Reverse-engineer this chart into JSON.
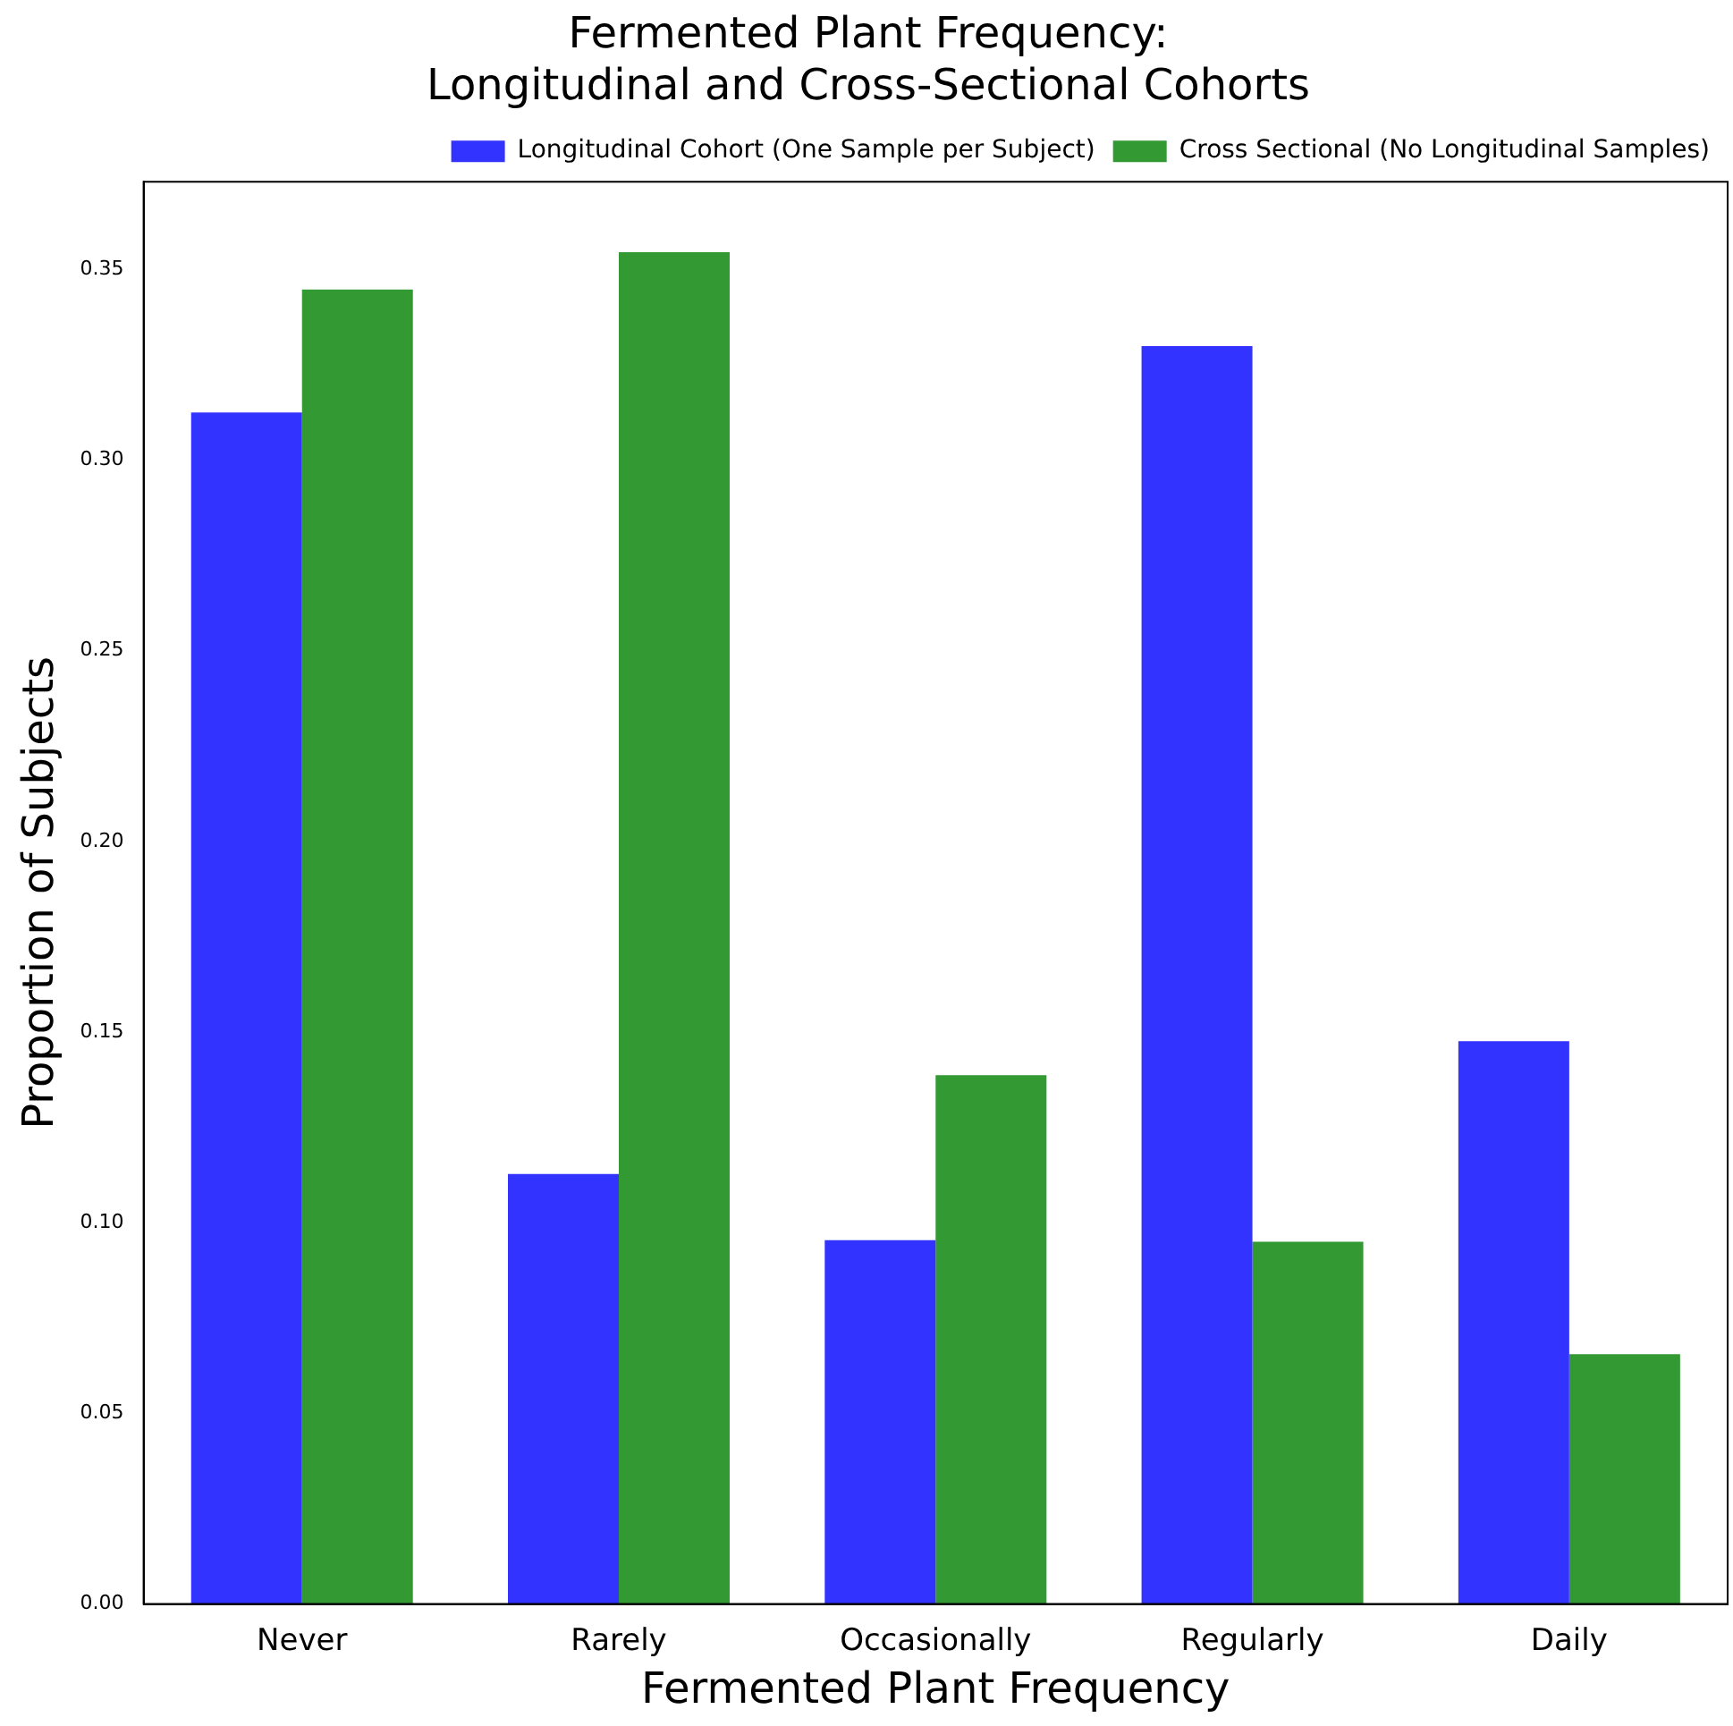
{
  "chart_data": {
    "type": "bar",
    "title": "Fermented Plant Frequency:\nLongitudinal and Cross-Sectional Cohorts",
    "xlabel": "Fermented Plant Frequency",
    "ylabel": "Proportion of Subjects",
    "categories": [
      "Never",
      "Rarely",
      "Occasionally",
      "Regularly",
      "Daily"
    ],
    "series": [
      {
        "name": "Longitudinal Cohort (One Sample per Subject)",
        "color": "#3333ff",
        "values": [
          0.3125,
          0.1128,
          0.0954,
          0.3299,
          0.1476
        ]
      },
      {
        "name": "Cross Sectional (No Longitudinal Samples)",
        "color": "#339933",
        "values": [
          0.3447,
          0.3545,
          0.1387,
          0.095,
          0.0655
        ]
      }
    ],
    "ylim": [
      0,
      0.373
    ],
    "yticks": [
      {
        "value": 0,
        "label": "0.00"
      },
      0.05,
      {
        "value": 0.1,
        "label": "0.10"
      },
      0.15,
      {
        "value": 0.2,
        "label": "0.20"
      },
      0.25,
      {
        "value": 0.3,
        "label": "0.30"
      },
      0.35
    ],
    "grid": false,
    "legend": "top right"
  }
}
